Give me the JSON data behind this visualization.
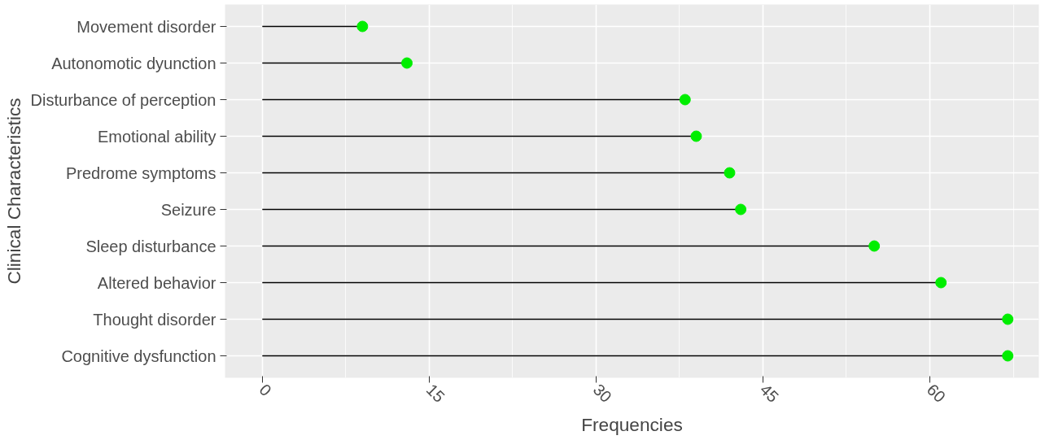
{
  "chart_data": {
    "type": "lollipop",
    "orientation": "horizontal",
    "xlabel": "Frequencies",
    "ylabel": "Clinical Characteristics",
    "categories": [
      "Movement disorder",
      "Autonomotic dyunction",
      "Disturbance of perception",
      "Emotional ability",
      "Predrome symptoms",
      "Seizure",
      "Sleep disturbance",
      "Altered behavior",
      "Thought disorder",
      "Cognitive dysfunction"
    ],
    "values": [
      9,
      13,
      38,
      39,
      42,
      43,
      55,
      61,
      67,
      67
    ],
    "color": "#00ee00",
    "xlim": [
      -3.35,
      69.8
    ],
    "xticks": [
      0,
      15,
      30,
      45,
      60
    ],
    "grid": true,
    "marker": "circle"
  }
}
